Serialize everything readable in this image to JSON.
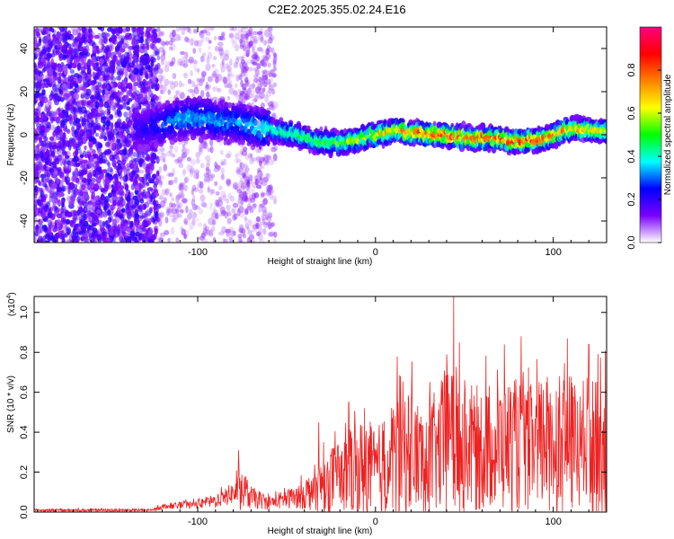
{
  "title": "C2E2.2025.355.02.24.E16",
  "chart_data": [
    {
      "type": "heatmap",
      "xlabel": "Height of straight line (km)",
      "ylabel": "Frequency (Hz)",
      "xlim": [
        -192,
        130
      ],
      "ylim": [
        -50,
        50
      ],
      "xticks": [
        -100,
        0,
        100
      ],
      "yticks": [
        -40,
        -20,
        0,
        20,
        40
      ],
      "colorbar": {
        "label": "Normalized spectral amplitude",
        "range": [
          0.0,
          1.0
        ],
        "ticks": [
          "0.0",
          "0.2",
          "0.4",
          "0.6",
          "0.8"
        ],
        "stops": [
          "#ffffff",
          "#7a00ff",
          "#0000ff",
          "#00ffff",
          "#00ff00",
          "#ffff00",
          "#ff8000",
          "#ff0000",
          "#ff0080"
        ]
      },
      "ridge": {
        "x": [
          -130,
          -115,
          -105,
          -95,
          -80,
          -65,
          -50,
          -35,
          -20,
          -5,
          10,
          20,
          35,
          50,
          65,
          80,
          95,
          110,
          125,
          130
        ],
        "y": [
          3,
          6,
          8,
          7,
          6,
          3,
          1,
          -3,
          -4,
          -1,
          2,
          1,
          0,
          -1,
          -2,
          -3,
          -2,
          3,
          2,
          2
        ],
        "peak_amplitude": [
          0.22,
          0.35,
          0.4,
          0.38,
          0.35,
          0.45,
          0.5,
          0.55,
          0.6,
          0.75,
          0.8,
          0.85,
          0.95,
          0.92,
          0.9,
          0.95,
          0.9,
          0.8,
          0.75,
          0.7
        ]
      }
    },
    {
      "type": "line",
      "xlabel": "Height of straight line (km)",
      "ylabel": "SNR (10 * v/v)",
      "y_multiplier": "(x10",
      "y_multiplier_exp": "4",
      "xlim": [
        -192,
        130
      ],
      "ylim": [
        0,
        1.08
      ],
      "xticks": [
        -100,
        0,
        100
      ],
      "yticks": [
        "0.0",
        "0.2",
        "0.4",
        "0.6",
        "0.8",
        "1.0"
      ],
      "color": "#ee2222",
      "envelope": {
        "x": [
          -192,
          -125,
          -120,
          -100,
          -90,
          -80,
          -75,
          -70,
          -60,
          -45,
          -35,
          -25,
          -15,
          -5,
          0,
          10,
          15,
          25,
          35,
          42,
          45,
          55,
          65,
          75,
          85,
          95,
          105,
          115,
          120,
          125,
          130
        ],
        "base": [
          0.01,
          0.01,
          0.03,
          0.04,
          0.06,
          0.1,
          0.12,
          0.08,
          0.05,
          0.08,
          0.12,
          0.18,
          0.22,
          0.25,
          0.22,
          0.3,
          0.35,
          0.3,
          0.33,
          0.4,
          0.38,
          0.35,
          0.36,
          0.38,
          0.35,
          0.38,
          0.4,
          0.35,
          0.38,
          0.42,
          0.45
        ],
        "spread": [
          0.01,
          0.01,
          0.02,
          0.03,
          0.05,
          0.08,
          0.16,
          0.08,
          0.05,
          0.08,
          0.15,
          0.25,
          0.3,
          0.38,
          0.3,
          0.45,
          0.5,
          0.4,
          0.45,
          0.62,
          0.55,
          0.45,
          0.48,
          0.5,
          0.45,
          0.5,
          0.55,
          0.45,
          0.55,
          0.6,
          0.6
        ]
      },
      "peaks": [
        {
          "x": -77,
          "y": 0.31
        },
        {
          "x": -32,
          "y": 0.45
        },
        {
          "x": -15,
          "y": 0.55
        },
        {
          "x": 14,
          "y": 0.68
        },
        {
          "x": 40,
          "y": 0.79
        },
        {
          "x": 44,
          "y": 1.08
        },
        {
          "x": 82,
          "y": 0.88
        },
        {
          "x": 108,
          "y": 0.87
        },
        {
          "x": 120,
          "y": 0.84
        }
      ]
    }
  ]
}
